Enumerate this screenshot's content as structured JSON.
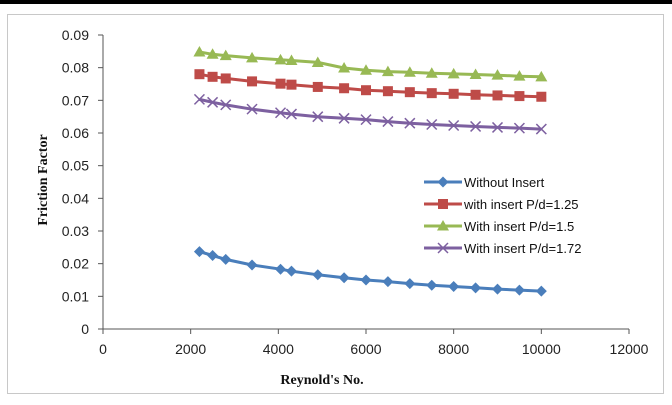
{
  "chart_data": {
    "type": "line",
    "xlabel": "Reynold's No.",
    "ylabel": "Friction Factor",
    "xlim": [
      0,
      12000
    ],
    "ylim": [
      0,
      0.09
    ],
    "x_ticks": [
      "0",
      "2000",
      "4000",
      "6000",
      "8000",
      "10000",
      "12000"
    ],
    "y_ticks": [
      "0",
      "0.01",
      "0.02",
      "0.03",
      "0.04",
      "0.05",
      "0.06",
      "0.07",
      "0.08",
      "0.09"
    ],
    "grid": false,
    "legend_position": "right",
    "x": [
      2200,
      2500,
      2800,
      3400,
      4050,
      4300,
      4900,
      5500,
      6000,
      6500,
      7000,
      7500,
      8000,
      8500,
      9000,
      9500,
      10000
    ],
    "series": [
      {
        "name": "Without Insert",
        "color": "#4a7ebb",
        "marker": "diamond",
        "values": [
          0.0237,
          0.0225,
          0.0213,
          0.0196,
          0.0183,
          0.0177,
          0.0166,
          0.0157,
          0.015,
          0.0145,
          0.0139,
          0.0134,
          0.013,
          0.0126,
          0.0122,
          0.0119,
          0.0116
        ]
      },
      {
        "name": "with insert P/d=1.25",
        "color": "#be4b48",
        "marker": "square",
        "values": [
          0.078,
          0.0772,
          0.0767,
          0.0758,
          0.0751,
          0.0748,
          0.0741,
          0.0737,
          0.0731,
          0.0728,
          0.0725,
          0.0722,
          0.072,
          0.0717,
          0.0715,
          0.0713,
          0.0711
        ]
      },
      {
        "name": "With insert P/d=1.5",
        "color": "#98b954",
        "marker": "triangle",
        "values": [
          0.0848,
          0.0841,
          0.0837,
          0.083,
          0.0824,
          0.0822,
          0.0816,
          0.0799,
          0.0792,
          0.0788,
          0.0786,
          0.0783,
          0.0781,
          0.0779,
          0.0777,
          0.0774,
          0.0772
        ]
      },
      {
        "name": "With insert P/d=1.72",
        "color": "#7d60a0",
        "marker": "x",
        "values": [
          0.0703,
          0.0694,
          0.0686,
          0.0673,
          0.0662,
          0.0658,
          0.065,
          0.0645,
          0.0641,
          0.0635,
          0.063,
          0.0626,
          0.0623,
          0.062,
          0.0617,
          0.0615,
          0.0612
        ]
      }
    ]
  }
}
